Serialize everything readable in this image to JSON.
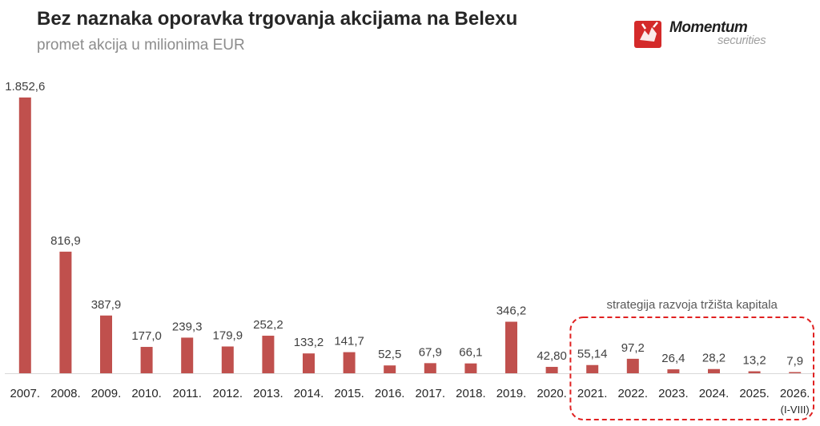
{
  "header": {
    "title": "Bez naznaka oporavka trgovanja akcijama na Belexu",
    "subtitle": "promet akcija u milionima EUR"
  },
  "logo": {
    "name": "Momentum",
    "tagline": "securities"
  },
  "colors": {
    "bar": "#c0504d",
    "highlight_border": "#e02020"
  },
  "chart_data": {
    "type": "bar",
    "title": "Bez naznaka oporavka trgovanja akcijama na Belexu",
    "subtitle": "promet akcija u milionima EUR",
    "xlabel": "",
    "ylabel": "",
    "categories": [
      "2007.",
      "2008.",
      "2009.",
      "2010.",
      "2011.",
      "2012.",
      "2013.",
      "2014.",
      "2015.",
      "2016.",
      "2017.",
      "2018.",
      "2019.",
      "2020.",
      "2021.",
      "2022.",
      "2023.",
      "2024.",
      "2025.",
      "2026."
    ],
    "values": [
      1852.6,
      816.9,
      387.9,
      177.0,
      239.3,
      179.9,
      252.2,
      133.2,
      141.7,
      52.5,
      67.9,
      66.1,
      346.2,
      42.8,
      55.14,
      97.2,
      26.4,
      28.2,
      13.2,
      7.9
    ],
    "value_labels": [
      "1.852,6",
      "816,9",
      "387,9",
      "177,0",
      "239,3",
      "179,9",
      "252,2",
      "133,2",
      "141,7",
      "52,5",
      "67,9",
      "66,1",
      "346,2",
      "42,80",
      "55,14",
      "97,2",
      "26,4",
      "28,2",
      "13,2",
      "7,9"
    ],
    "category_note": {
      "category": "2026.",
      "text": "(I-VIII)"
    },
    "annotation": {
      "text": "strategija razvoja tržišta kapitala",
      "from_category": "2021.",
      "to_category": "2026."
    },
    "ylim": [
      0,
      1852.6
    ],
    "grid": false,
    "legend": "none"
  }
}
